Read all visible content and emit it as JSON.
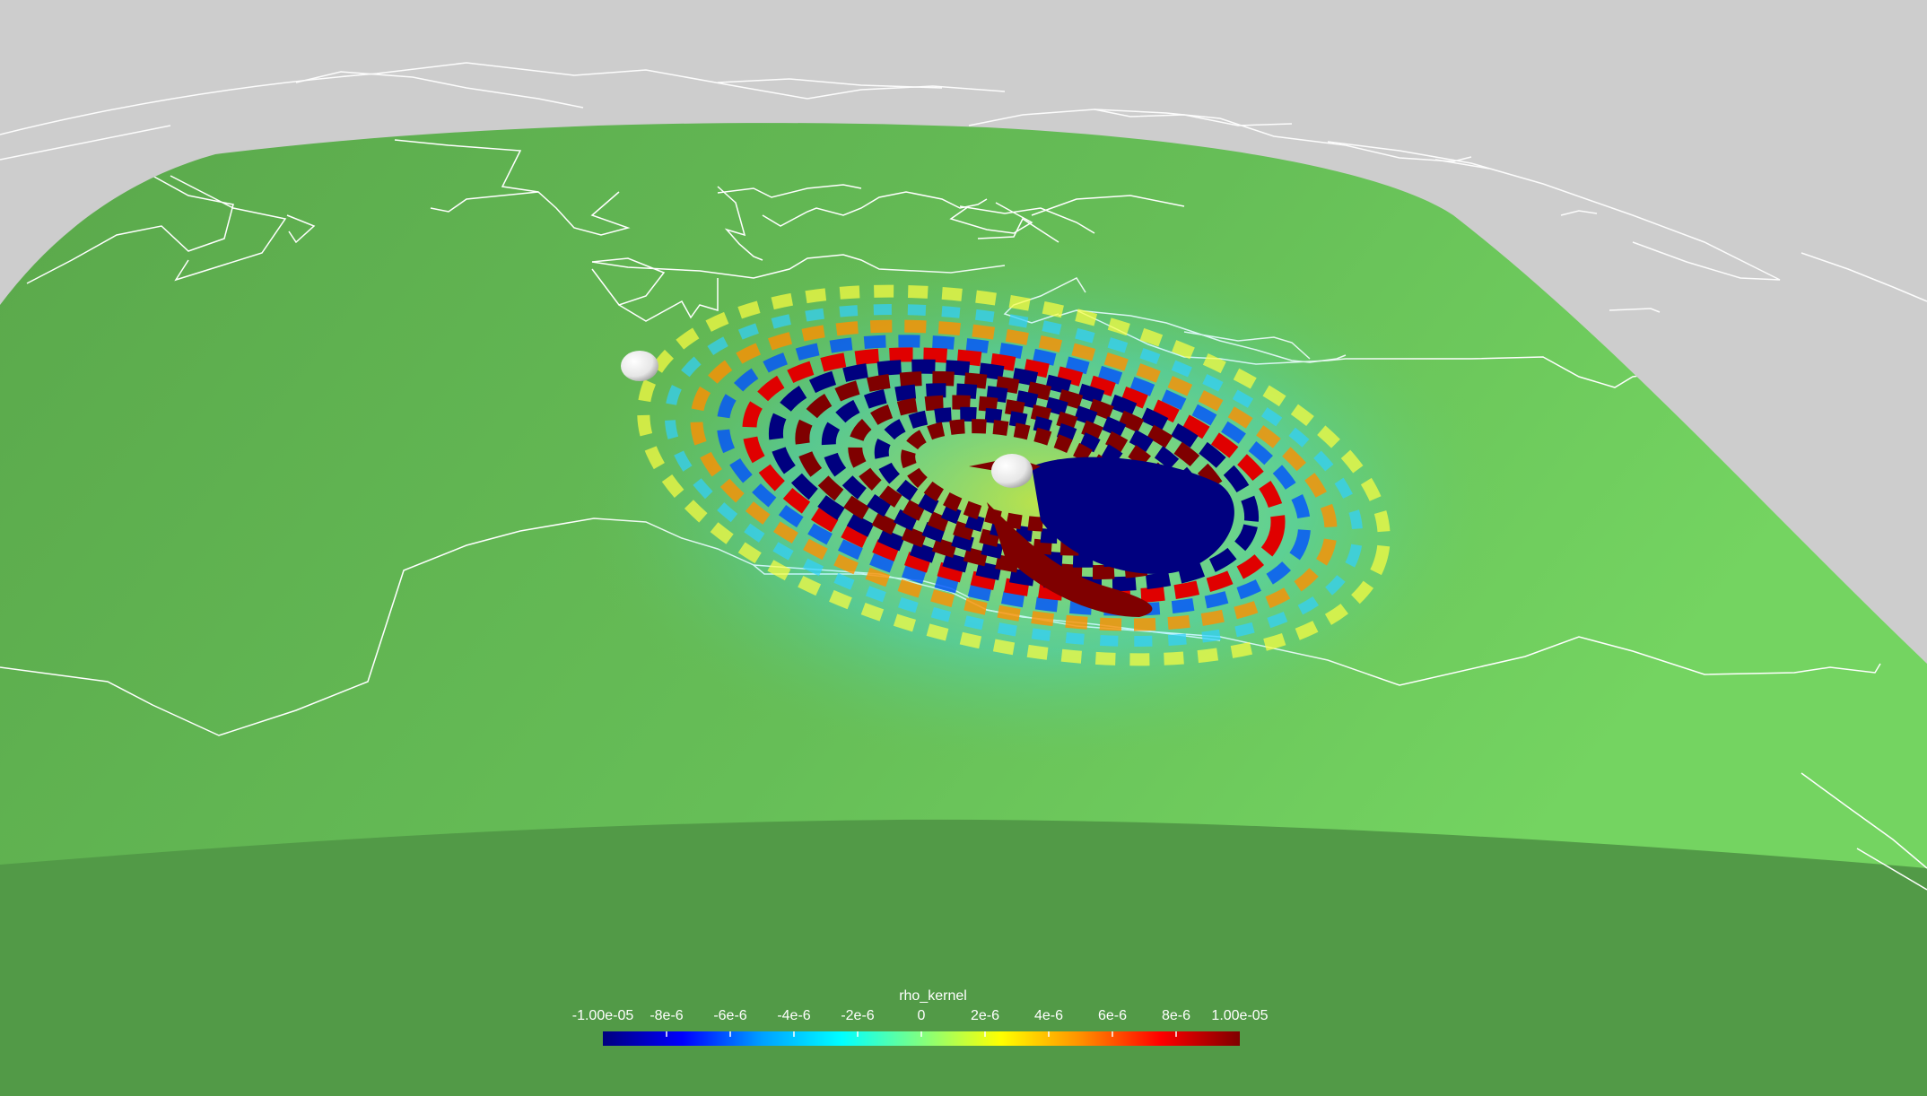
{
  "colorbar": {
    "title": "rho_kernel",
    "ticks": [
      "-1.00e-05",
      "-8e-6",
      "-6e-6",
      "-4e-6",
      "-2e-6",
      "0",
      "2e-6",
      "4e-6",
      "6e-6",
      "8e-6",
      "1.00e-05"
    ],
    "range": [
      -1e-05,
      1e-05
    ],
    "colormap": [
      "#00007f",
      "#0000ff",
      "#00a0ff",
      "#00ffff",
      "#80ff80",
      "#ffff00",
      "#ff9000",
      "#ff0000",
      "#7f0000"
    ]
  },
  "colors": {
    "background": "#cdcdcd",
    "surface": "#6bc45a",
    "inner_surface": "#529a47",
    "kernel_negative": "#00007f",
    "kernel_positive": "#7f0000",
    "outline": "#ffffff",
    "marker": "#f2f2f2"
  },
  "markers": [
    {
      "name": "station-marker"
    },
    {
      "name": "source-marker"
    }
  ]
}
